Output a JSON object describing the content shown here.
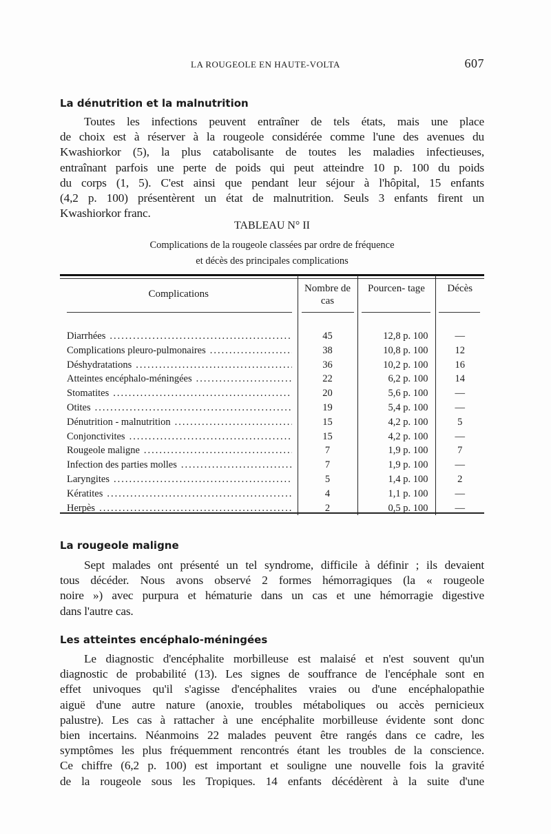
{
  "header": {
    "running_title": "LA ROUGEOLE EN HAUTE-VOLTA",
    "page_number": "607"
  },
  "section1": {
    "heading": "La dénutrition et la malnutrition",
    "lines": [
      "Toutes les infections peuvent entraîner de tels états, mais une place",
      "de choix est à réserver à la rougeole considérée comme l'une des avenues du",
      "Kwashiorkor (5), la plus catabolisante de toutes les maladies infectieuses,",
      "entraînant parfois une perte de poids qui peut atteindre 10 p. 100 du poids",
      "du corps (1, 5). C'est ainsi que pendant leur séjour à l'hôpital, 15 enfants",
      "(4,2 p. 100) présentèrent un état de malnutrition. Seuls 3 enfants firent un",
      "Kwashiorkor franc."
    ]
  },
  "table": {
    "label": "TABLEAU N° II",
    "caption_line1": "Complications de la rougeole classées par ordre de fréquence",
    "caption_line2": "et décès des principales complications",
    "headers": [
      "Complications",
      "Nombre de cas",
      "Pourcen- tage",
      "Décès"
    ],
    "rows": [
      [
        "Diarrhées",
        "45",
        "12,8 p. 100",
        "—"
      ],
      [
        "Complications pleuro-pulmonaires",
        "38",
        "10,8 p. 100",
        "12"
      ],
      [
        "Déshydratations",
        "36",
        "10,2 p. 100",
        "16"
      ],
      [
        "Atteintes encéphalo-méningées",
        "22",
        "6,2 p. 100",
        "14"
      ],
      [
        "Stomatites",
        "20",
        "5,6 p. 100",
        "—"
      ],
      [
        "Otites",
        "19",
        "5,4 p. 100",
        "—"
      ],
      [
        "Dénutrition - malnutrition",
        "15",
        "4,2 p. 100",
        "5"
      ],
      [
        "Conjonctivites",
        "15",
        "4,2 p. 100",
        "—"
      ],
      [
        "Rougeole maligne",
        "7",
        "1,9 p. 100",
        "7"
      ],
      [
        "Infection des parties molles",
        "7",
        "1,9 p. 100",
        "—"
      ],
      [
        "Laryngites",
        "5",
        "1,4 p. 100",
        "2"
      ],
      [
        "Kératites",
        "4",
        "1,1 p. 100",
        "—"
      ],
      [
        "Herpès",
        "2",
        "0,5 p. 100",
        "—"
      ]
    ]
  },
  "section2": {
    "heading": "La rougeole maligne",
    "lines": [
      "Sept malades ont présenté un tel syndrome, difficile à définir ; ils devaient",
      "tous décéder. Nous avons observé 2 formes hémorragiques (la « rougeole",
      "noire ») avec purpura et hématurie dans un cas et une hémorragie digestive",
      "dans l'autre cas."
    ]
  },
  "section3": {
    "heading": "Les atteintes encéphalo-méningées",
    "lines": [
      "Le diagnostic d'encéphalite morbilleuse est malaisé et n'est souvent qu'un",
      "diagnostic de probabilité (13). Les signes de souffrance de l'encéphale sont en",
      "effet univoques qu'il s'agisse d'encéphalites vraies ou d'une encéphalopathie",
      "aiguë d'une autre nature (anoxie, troubles métaboliques ou accès pernicieux",
      "palustre). Les cas à rattacher à une encéphalite morbilleuse évidente sont donc",
      "bien incertains. Néanmoins 22 malades peuvent être rangés dans ce cadre, les",
      "symptômes les plus fréquemment rencontrés étant les troubles de la conscience.",
      "Ce chiffre (6,2 p. 100) est important et souligne une nouvelle fois la gravité",
      "de la rougeole sous les Tropiques. 14 enfants décédèrent à la suite d'une"
    ]
  }
}
